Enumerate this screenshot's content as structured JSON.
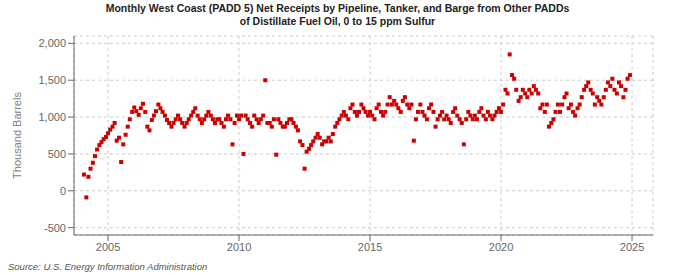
{
  "chart_data": {
    "type": "scatter",
    "title": "Monthly West Coast (PADD 5) Net Receipts by Pipeline, Tanker, and Barge from Other PADDs\nof Distillate Fuel Oil, 0 to 15 ppm Sulfur",
    "ylabel": "Thousand Barrels",
    "annotations": [
      "Source: U.S. Energy Information Administration"
    ],
    "color": "#cc0000",
    "marker": "square",
    "grid": true,
    "xlim": [
      2003.7,
      2025.8
    ],
    "ylim": [
      -600,
      2100
    ],
    "xticks": [
      2005,
      2010,
      2015,
      2020,
      2025
    ],
    "yticks": [
      -500,
      0,
      500,
      {
        "value": 1000,
        "label": "1,000"
      },
      {
        "value": 1500,
        "label": "1,500"
      },
      {
        "value": 2000,
        "label": "2,000"
      }
    ],
    "x": [
      2004.08,
      2004.17,
      2004.25,
      2004.33,
      2004.42,
      2004.5,
      2004.58,
      2004.67,
      2004.75,
      2004.83,
      2004.92,
      2005,
      2005.08,
      2005.17,
      2005.25,
      2005.33,
      2005.42,
      2005.5,
      2005.58,
      2005.67,
      2005.75,
      2005.83,
      2005.92,
      2006,
      2006.08,
      2006.17,
      2006.25,
      2006.33,
      2006.42,
      2006.5,
      2006.58,
      2006.67,
      2006.75,
      2006.83,
      2006.92,
      2007,
      2007.08,
      2007.17,
      2007.25,
      2007.33,
      2007.42,
      2007.5,
      2007.58,
      2007.67,
      2007.75,
      2007.83,
      2007.92,
      2008,
      2008.08,
      2008.17,
      2008.25,
      2008.33,
      2008.42,
      2008.5,
      2008.58,
      2008.67,
      2008.75,
      2008.83,
      2008.92,
      2009,
      2009.08,
      2009.17,
      2009.25,
      2009.33,
      2009.42,
      2009.5,
      2009.58,
      2009.67,
      2009.75,
      2009.83,
      2009.92,
      2010,
      2010.08,
      2010.17,
      2010.25,
      2010.33,
      2010.42,
      2010.5,
      2010.58,
      2010.67,
      2010.75,
      2010.83,
      2010.92,
      2011,
      2011.08,
      2011.17,
      2011.25,
      2011.33,
      2011.42,
      2011.5,
      2011.58,
      2011.67,
      2011.75,
      2011.83,
      2011.92,
      2012,
      2012.08,
      2012.17,
      2012.25,
      2012.33,
      2012.42,
      2012.5,
      2012.58,
      2012.67,
      2012.75,
      2012.83,
      2012.92,
      2013,
      2013.08,
      2013.17,
      2013.25,
      2013.33,
      2013.42,
      2013.5,
      2013.58,
      2013.67,
      2013.75,
      2013.83,
      2013.92,
      2014,
      2014.08,
      2014.17,
      2014.25,
      2014.33,
      2014.42,
      2014.5,
      2014.58,
      2014.67,
      2014.75,
      2014.83,
      2014.92,
      2015,
      2015.08,
      2015.17,
      2015.25,
      2015.33,
      2015.42,
      2015.5,
      2015.58,
      2015.67,
      2015.75,
      2015.83,
      2015.92,
      2016,
      2016.08,
      2016.17,
      2016.25,
      2016.33,
      2016.42,
      2016.5,
      2016.58,
      2016.67,
      2016.75,
      2016.83,
      2016.92,
      2017,
      2017.08,
      2017.17,
      2017.25,
      2017.33,
      2017.42,
      2017.5,
      2017.58,
      2017.67,
      2017.75,
      2017.83,
      2017.92,
      2018,
      2018.08,
      2018.17,
      2018.25,
      2018.33,
      2018.42,
      2018.5,
      2018.58,
      2018.67,
      2018.75,
      2018.83,
      2018.92,
      2019,
      2019.08,
      2019.17,
      2019.25,
      2019.33,
      2019.42,
      2019.5,
      2019.58,
      2019.67,
      2019.75,
      2019.83,
      2019.92,
      2020,
      2020.08,
      2020.17,
      2020.25,
      2020.33,
      2020.42,
      2020.5,
      2020.58,
      2020.67,
      2020.75,
      2020.83,
      2020.92,
      2021,
      2021.08,
      2021.17,
      2021.25,
      2021.33,
      2021.42,
      2021.5,
      2021.58,
      2021.67,
      2021.75,
      2021.83,
      2021.92,
      2022,
      2022.08,
      2022.17,
      2022.25,
      2022.33,
      2022.42,
      2022.5,
      2022.58,
      2022.67,
      2022.75,
      2022.83,
      2022.92,
      2023,
      2023.08,
      2023.17,
      2023.25,
      2023.33,
      2023.42,
      2023.5,
      2023.58,
      2023.67,
      2023.75,
      2023.83,
      2023.92,
      2024,
      2024.08,
      2024.17,
      2024.25,
      2024.33,
      2024.42,
      2024.5,
      2024.58,
      2024.67,
      2024.75,
      2024.83,
      2024.92
    ],
    "values": [
      220,
      -90,
      190,
      300,
      380,
      470,
      560,
      620,
      660,
      700,
      730,
      780,
      830,
      870,
      920,
      680,
      720,
      390,
      630,
      760,
      870,
      970,
      1070,
      1130,
      1080,
      1030,
      1120,
      1180,
      1070,
      870,
      820,
      960,
      1020,
      1080,
      1170,
      1120,
      1070,
      1020,
      960,
      920,
      870,
      920,
      970,
      1020,
      970,
      920,
      870,
      920,
      970,
      1020,
      1070,
      1120,
      1020,
      970,
      920,
      970,
      1020,
      1070,
      1020,
      970,
      920,
      970,
      970,
      920,
      870,
      970,
      1020,
      970,
      630,
      920,
      1020,
      970,
      1020,
      500,
      1020,
      970,
      920,
      870,
      1020,
      970,
      920,
      970,
      1020,
      1500,
      920,
      920,
      870,
      970,
      490,
      970,
      920,
      870,
      870,
      920,
      970,
      970,
      920,
      870,
      820,
      670,
      620,
      300,
      530,
      570,
      620,
      670,
      720,
      770,
      720,
      630,
      670,
      670,
      720,
      670,
      770,
      870,
      920,
      970,
      1020,
      1070,
      1020,
      970,
      1120,
      1170,
      1070,
      1020,
      1070,
      1170,
      1120,
      1070,
      1020,
      1070,
      1020,
      970,
      1120,
      1170,
      1070,
      1020,
      1070,
      1170,
      1270,
      1170,
      1220,
      1170,
      1120,
      1070,
      1220,
      1270,
      1170,
      1120,
      1170,
      680,
      970,
      1070,
      1170,
      1070,
      1020,
      970,
      1120,
      1170,
      1070,
      870,
      970,
      1020,
      1070,
      970,
      1020,
      970,
      920,
      1070,
      1120,
      1020,
      970,
      920,
      630,
      970,
      1070,
      1020,
      970,
      1020,
      970,
      1070,
      1120,
      1020,
      970,
      1070,
      1020,
      970,
      1020,
      1070,
      1120,
      1070,
      1170,
      1370,
      1320,
      1850,
      1570,
      1520,
      1370,
      1220,
      1270,
      1370,
      1320,
      1270,
      1370,
      1320,
      1420,
      1370,
      1320,
      1120,
      1170,
      1070,
      1170,
      870,
      920,
      970,
      1070,
      1170,
      1070,
      1170,
      1270,
      1320,
      1120,
      1170,
      1070,
      1020,
      1120,
      1170,
      1270,
      1370,
      1420,
      1470,
      1370,
      1320,
      1170,
      1270,
      1220,
      1170,
      1270,
      1370,
      1470,
      1420,
      1520,
      1370,
      1320,
      1470,
      1420,
      1270,
      1370,
      1520,
      1570
    ]
  }
}
